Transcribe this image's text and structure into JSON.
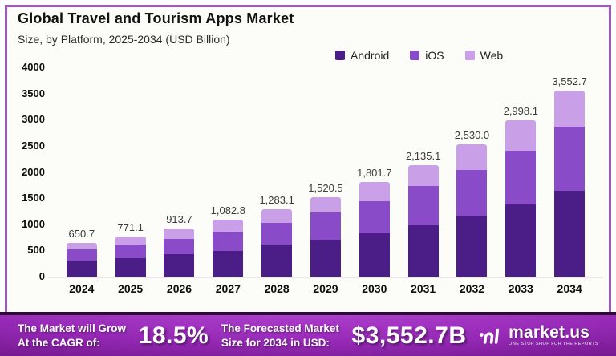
{
  "frame": {
    "border_color": "#9d5ab8",
    "background": "#fcfcf9"
  },
  "header": {
    "title": "Global Travel and Tourism Apps Market",
    "subtitle": "Size, by Platform, 2025-2034 (USD Billion)"
  },
  "chart_data": {
    "type": "bar",
    "stacked": true,
    "title": "Global Travel and Tourism Apps Market",
    "subtitle": "Size, by Platform, 2025-2034 (USD Billion)",
    "categories": [
      "2024",
      "2025",
      "2026",
      "2027",
      "2028",
      "2029",
      "2030",
      "2031",
      "2032",
      "2033",
      "2034"
    ],
    "series": [
      {
        "name": "Android",
        "color": "#4a1d87",
        "values": [
          310.0,
          360.0,
          436.0,
          497.0,
          610.0,
          705.0,
          835.0,
          988.0,
          1150.0,
          1380.0,
          1635.0
        ]
      },
      {
        "name": "iOS",
        "color": "#8a4bc9",
        "values": [
          207.0,
          256.0,
          293.0,
          366.0,
          416.0,
          523.0,
          611.0,
          738.0,
          894.0,
          1032.0,
          1230.0
        ]
      },
      {
        "name": "Web",
        "color": "#c9a0e8",
        "values": [
          133.7,
          155.1,
          184.7,
          219.8,
          257.1,
          292.5,
          355.7,
          409.1,
          486.0,
          586.1,
          687.7
        ]
      }
    ],
    "total_labels": [
      "650.7",
      "771.1",
      "913.7",
      "1,082.8",
      "1,283.1",
      "1,520.5",
      "1,801.7",
      "2,135.1",
      "2,530.0",
      "2,998.1",
      "3,552.7"
    ],
    "totals": [
      650.7,
      771.1,
      913.7,
      1082.8,
      1283.1,
      1520.5,
      1801.7,
      2135.1,
      2530.0,
      2998.1,
      3552.7
    ],
    "y_ticks": [
      4000,
      3500,
      3000,
      2500,
      2000,
      1500,
      1000,
      500,
      0
    ],
    "ylim": [
      0,
      4000
    ],
    "ylabel": "",
    "xlabel": "",
    "grid": false,
    "legend_position": "top-right"
  },
  "banner": {
    "left_line1": "The Market will Grow",
    "left_line2": "At the CAGR of:",
    "cagr_value": "18.5%",
    "mid_line1": "The Forecasted Market",
    "mid_line2": "Size for 2034 in USD:",
    "forecast_value": "$3,552.7B",
    "brand_name": "market.us",
    "brand_tagline": "ONE STOP SHOP FOR THE REPORTS"
  }
}
